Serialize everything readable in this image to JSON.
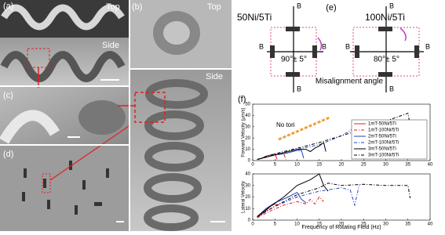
{
  "panels": {
    "a": {
      "label": "(a)",
      "top": "Top",
      "side": "Side"
    },
    "b": {
      "label": "(b)",
      "top": "Top",
      "side": "Side"
    },
    "c": {
      "label": "(c)"
    },
    "d": {
      "label": "(d)"
    },
    "e": {
      "label": "(e)",
      "left_title": "50Ni/5Ti",
      "right_title": "100Ni/5Ti",
      "left_angle": "90°± 5°",
      "right_angle": "80°± 5°",
      "b_label": "B",
      "caption": "Misalignment angle"
    },
    "f": {
      "label": "(f)"
    }
  },
  "chart_data": [
    {
      "type": "line",
      "ylabel": "Forward Velocity (μm/s)",
      "annotation": "No tori",
      "xlim": [
        0,
        40
      ],
      "xticks": [
        0,
        5,
        10,
        15,
        20,
        25,
        30,
        35,
        40
      ],
      "ylim": [
        0,
        50
      ],
      "yticks": [
        0,
        10,
        20,
        30,
        40,
        50
      ],
      "legend": "lower right",
      "series": [
        {
          "name": "1mT-50Ni/5Ti",
          "color": "#e02020",
          "dash": "solid",
          "x": [
            1,
            2,
            3,
            4,
            5,
            5.5
          ],
          "values": [
            1,
            2,
            4,
            5,
            6,
            1
          ]
        },
        {
          "name": "1mT-100Ni/5Ti",
          "color": "#e02020",
          "dash": "dashdot",
          "x": [
            1,
            2,
            3,
            4,
            5,
            6,
            7,
            7.5
          ],
          "values": [
            1,
            2,
            3,
            4,
            5,
            6,
            6,
            1
          ]
        },
        {
          "name": "2mT-50Ni/5Ti",
          "color": "#2040c0",
          "dash": "solid",
          "x": [
            1,
            3,
            5,
            7,
            9,
            10,
            11,
            11.5
          ],
          "values": [
            1,
            3,
            5,
            6,
            8,
            9,
            9,
            2
          ]
        },
        {
          "name": "2mT-100Ni/5Ti",
          "color": "#2040c0",
          "dash": "dashdot",
          "x": [
            1,
            5,
            10,
            15,
            20,
            23,
            24
          ],
          "values": [
            1,
            5,
            10,
            14,
            22,
            29,
            3
          ]
        },
        {
          "name": "3mT-50Ni/5Ti",
          "color": "#000000",
          "dash": "solid",
          "x": [
            1,
            4,
            7,
            10,
            12,
            13,
            14,
            15,
            16,
            16.5
          ],
          "values": [
            1,
            4,
            7,
            10,
            10,
            8,
            11,
            13,
            16,
            8
          ]
        },
        {
          "name": "3mT-100Ni/5Ti",
          "color": "#000000",
          "dash": "dashdot",
          "x": [
            1,
            5,
            10,
            15,
            20,
            25,
            30,
            35,
            36
          ],
          "values": [
            1,
            6,
            11,
            16,
            22,
            28,
            35,
            42,
            20
          ]
        }
      ]
    },
    {
      "type": "line",
      "ylabel": "Lateral Velocity",
      "xlabel": "Frequency of Rotating Field (Hz)",
      "xlim": [
        0,
        40
      ],
      "xticks": [
        0,
        5,
        10,
        15,
        20,
        25,
        30,
        35,
        40
      ],
      "ylim": [
        0,
        40
      ],
      "yticks": [
        0,
        10,
        20,
        30,
        40
      ],
      "series": [
        {
          "color": "#e02020",
          "dash": "solid",
          "x": [
            1,
            2,
            3,
            4,
            5,
            6
          ],
          "values": [
            2,
            5,
            8,
            12,
            14,
            13
          ]
        },
        {
          "color": "#e02020",
          "dash": "dashdot",
          "x": [
            1,
            4,
            7,
            10,
            12,
            13,
            14,
            15,
            16
          ],
          "values": [
            2,
            8,
            13,
            16,
            14,
            18,
            14,
            20,
            16
          ]
        },
        {
          "color": "#2040c0",
          "dash": "solid",
          "x": [
            1,
            3,
            5,
            8,
            10,
            11,
            12
          ],
          "values": [
            3,
            10,
            15,
            20,
            24,
            18,
            15
          ]
        },
        {
          "color": "#2040c0",
          "dash": "dashdot",
          "x": [
            1,
            5,
            10,
            15,
            20,
            22,
            23,
            24
          ],
          "values": [
            3,
            12,
            20,
            25,
            28,
            26,
            13,
            30
          ]
        },
        {
          "color": "#000000",
          "dash": "solid",
          "x": [
            1,
            4,
            7,
            10,
            13,
            15,
            16,
            17
          ],
          "values": [
            3,
            12,
            20,
            30,
            35,
            40,
            30,
            25
          ]
        },
        {
          "color": "#000000",
          "dash": "dashdot",
          "x": [
            1,
            5,
            10,
            15,
            17,
            20,
            25,
            30,
            35,
            35.5
          ],
          "values": [
            3,
            12,
            22,
            28,
            32,
            30,
            31,
            30,
            30,
            19
          ]
        }
      ]
    }
  ]
}
